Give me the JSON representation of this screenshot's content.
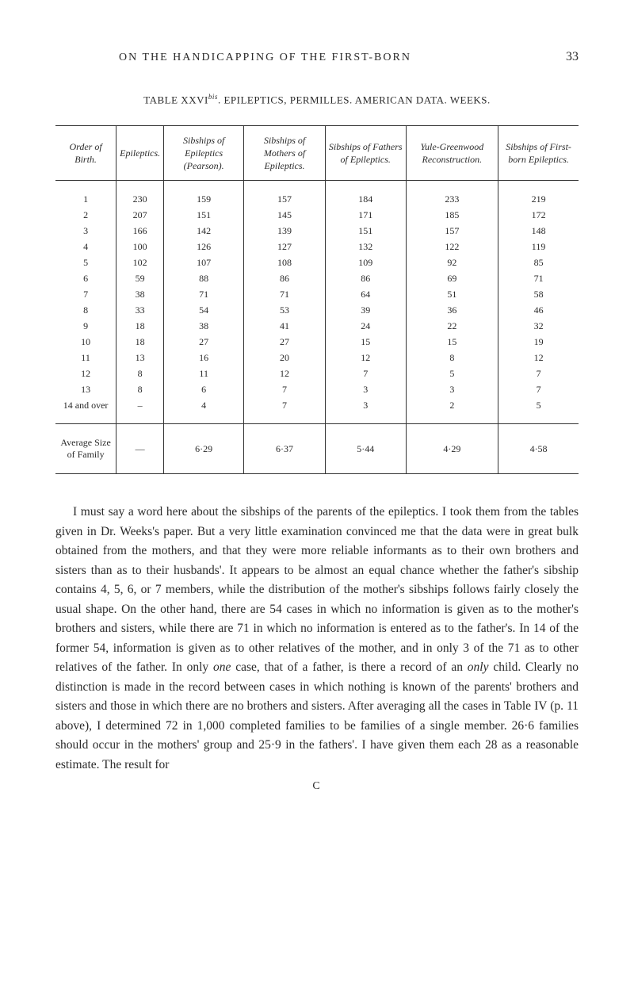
{
  "header": {
    "running_title": "ON THE HANDICAPPING OF THE FIRST-BORN",
    "page_number": "33"
  },
  "table": {
    "caption_prefix": "TABLE XXVI",
    "caption_sup": "bis",
    "caption_rest": ". EPILEPTICS, PERMILLES. AMERICAN DATA. WEEKS.",
    "columns": [
      "Order of Birth.",
      "Epileptics.",
      "Sibships of Epileptics (Pearson).",
      "Sibships of Mothers of Epileptics.",
      "Sibships of Fathers of Epileptics.",
      "Yule-Greenwood Reconstruction.",
      "Sibships of First-born Epileptics."
    ],
    "rows": [
      [
        "1",
        "230",
        "159",
        "157",
        "184",
        "233",
        "219"
      ],
      [
        "2",
        "207",
        "151",
        "145",
        "171",
        "185",
        "172"
      ],
      [
        "3",
        "166",
        "142",
        "139",
        "151",
        "157",
        "148"
      ],
      [
        "4",
        "100",
        "126",
        "127",
        "132",
        "122",
        "119"
      ],
      [
        "5",
        "102",
        "107",
        "108",
        "109",
        "92",
        "85"
      ],
      [
        "6",
        "59",
        "88",
        "86",
        "86",
        "69",
        "71"
      ],
      [
        "7",
        "38",
        "71",
        "71",
        "64",
        "51",
        "58"
      ],
      [
        "8",
        "33",
        "54",
        "53",
        "39",
        "36",
        "46"
      ],
      [
        "9",
        "18",
        "38",
        "41",
        "24",
        "22",
        "32"
      ],
      [
        "10",
        "18",
        "27",
        "27",
        "15",
        "15",
        "19"
      ],
      [
        "11",
        "13",
        "16",
        "20",
        "12",
        "8",
        "12"
      ],
      [
        "12",
        "8",
        "11",
        "12",
        "7",
        "5",
        "7"
      ],
      [
        "13",
        "8",
        "6",
        "7",
        "3",
        "3",
        "7"
      ],
      [
        "14 and over",
        "–",
        "4",
        "7",
        "3",
        "2",
        "5"
      ]
    ],
    "footer": [
      "Average Size of Family",
      "—",
      "6·29",
      "6·37",
      "5·44",
      "4·29",
      "4·58"
    ]
  },
  "paragraph": {
    "text_1": "I must say a word here about the sibships of the parents of the epileptics. I took them from the tables given in Dr. Weeks's paper. But a very little examination convinced me that the data were in great bulk obtained from the mothers, and that they were more reliable informants as to their own brothers and sisters than as to their husbands'. It appears to be almost an equal chance whether the father's sibship contains 4, 5, 6, or 7 members, while the distribu­tion of the mother's sibships follows fairly closely the usual shape. On the other hand, there are 54 cases in which no informa­tion is given as to the mother's brothers and sisters, while there are 71 in which no information is entered as to the father's. In 14 of the former 54, information is given as to other rela­tives of the mother, and in only 3 of the 71 as to other relatives of the father. In only ",
    "italic_1": "one",
    "text_2": " case, that of a father, is there a record of an ",
    "italic_2": "only",
    "text_3": " child. Clearly no distinction is made in the record between cases in which nothing is known of the parents' brothers and sisters and those in which there are no brothers and sisters. After averaging all the cases in Table IV (p. 11 above), I determined 72 in 1,000 completed families to be families of a single member. 26·6 families should occur in the mothers' group and 25·9 in the fathers'. I have given them each 28 as a reasonable estimate. The result for"
  },
  "footer_mark": "C"
}
